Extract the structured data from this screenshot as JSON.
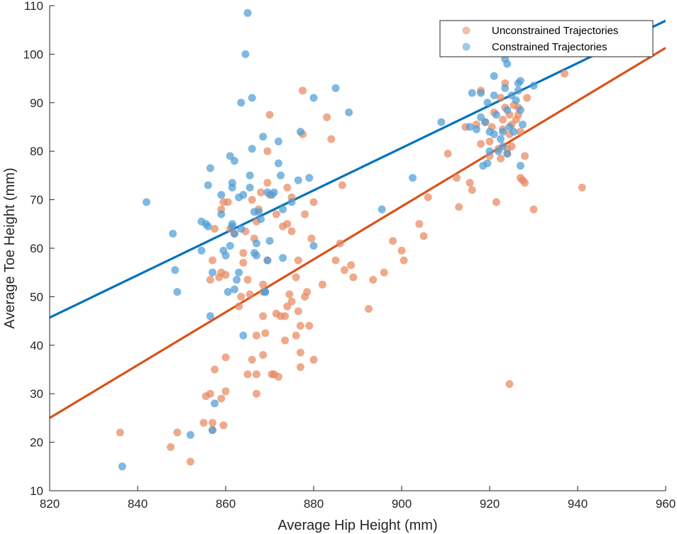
{
  "chart_data": {
    "type": "scatter",
    "title": "",
    "xlabel": "Average Hip Height (mm)",
    "ylabel": "Average Toe Height (mm)",
    "xlim": [
      820,
      960
    ],
    "ylim": [
      10,
      110
    ],
    "xticks": [
      820,
      840,
      860,
      880,
      900,
      920,
      940,
      960
    ],
    "yticks": [
      10,
      20,
      30,
      40,
      50,
      60,
      70,
      80,
      90,
      100,
      110
    ],
    "xtick_labels": [
      "820",
      "840",
      "860",
      "880",
      "900",
      "920",
      "940",
      "960"
    ],
    "ytick_labels": [
      "10",
      "20",
      "30",
      "40",
      "50",
      "60",
      "70",
      "80",
      "90",
      "100",
      "110"
    ],
    "grid": false,
    "legend_position": "top-right",
    "series": [
      {
        "name": "Unconstrained Trajectories",
        "color": "#D95319",
        "points": [
          [
            836,
            22
          ],
          [
            847.5,
            19
          ],
          [
            849,
            22
          ],
          [
            852,
            16
          ],
          [
            855,
            24
          ],
          [
            855.5,
            29.5
          ],
          [
            856.5,
            30
          ],
          [
            857,
            22.5
          ],
          [
            857,
            24
          ],
          [
            857.5,
            35
          ],
          [
            859,
            29
          ],
          [
            859.5,
            23.5
          ],
          [
            860,
            30.5
          ],
          [
            860,
            37.5
          ],
          [
            856.5,
            53.5
          ],
          [
            857,
            57.5
          ],
          [
            857.5,
            64
          ],
          [
            858.5,
            54
          ],
          [
            859,
            68
          ],
          [
            859.5,
            69.5
          ],
          [
            859,
            55
          ],
          [
            860,
            54.5
          ],
          [
            860.5,
            69.5
          ],
          [
            861,
            64
          ],
          [
            862,
            63
          ],
          [
            863,
            48
          ],
          [
            863.5,
            50
          ],
          [
            864,
            57
          ],
          [
            864,
            59
          ],
          [
            864.5,
            63.5
          ],
          [
            865,
            53.5
          ],
          [
            865.5,
            50.5
          ],
          [
            865,
            34
          ],
          [
            866,
            37
          ],
          [
            866,
            70
          ],
          [
            866.5,
            62
          ],
          [
            867,
            65.5
          ],
          [
            867,
            42
          ],
          [
            867,
            34
          ],
          [
            867,
            30
          ],
          [
            867.5,
            68
          ],
          [
            868,
            71.5
          ],
          [
            868.5,
            52.5
          ],
          [
            868.5,
            51
          ],
          [
            868.5,
            46
          ],
          [
            868.5,
            38
          ],
          [
            869,
            42.5
          ],
          [
            869.5,
            80
          ],
          [
            869.5,
            57.5
          ],
          [
            869.5,
            73.5
          ],
          [
            870,
            87.5
          ],
          [
            870,
            71
          ],
          [
            870.5,
            34
          ],
          [
            871,
            34
          ],
          [
            871.5,
            46.5
          ],
          [
            871.5,
            67
          ],
          [
            872,
            33.5
          ],
          [
            872.5,
            46
          ],
          [
            873,
            64.5
          ],
          [
            873.5,
            46
          ],
          [
            873.5,
            41
          ],
          [
            874,
            65
          ],
          [
            874,
            72.5
          ],
          [
            874,
            48
          ],
          [
            874.5,
            50.5
          ],
          [
            875,
            63.5
          ],
          [
            875,
            70.5
          ],
          [
            875,
            49
          ],
          [
            876,
            54
          ],
          [
            876,
            42
          ],
          [
            876.5,
            57.5
          ],
          [
            876.5,
            47
          ],
          [
            877,
            44
          ],
          [
            877,
            38.5
          ],
          [
            877,
            35.5
          ],
          [
            877.5,
            83.5
          ],
          [
            877.5,
            92.5
          ],
          [
            878,
            67
          ],
          [
            878,
            50
          ],
          [
            878.5,
            51
          ],
          [
            879,
            44
          ],
          [
            879.5,
            62
          ],
          [
            880,
            69.5
          ],
          [
            880,
            37
          ],
          [
            882,
            52.5
          ],
          [
            883,
            87
          ],
          [
            884,
            82.5
          ],
          [
            885,
            57.5
          ],
          [
            886,
            61
          ],
          [
            886.5,
            73
          ],
          [
            887,
            55.5
          ],
          [
            888.5,
            56.5
          ],
          [
            889,
            54
          ],
          [
            892.5,
            47.5
          ],
          [
            893.5,
            53.5
          ],
          [
            896,
            55
          ],
          [
            898,
            61.5
          ],
          [
            900,
            59.5
          ],
          [
            900.5,
            57.5
          ],
          [
            904,
            65
          ],
          [
            905,
            62.5
          ],
          [
            906,
            70.5
          ],
          [
            910.5,
            79.5
          ],
          [
            912.5,
            74.5
          ],
          [
            913,
            68.5
          ],
          [
            914.5,
            85
          ],
          [
            915.5,
            73.5
          ],
          [
            916,
            72
          ],
          [
            917,
            85.5
          ],
          [
            918,
            92.5
          ],
          [
            918,
            81.5
          ],
          [
            919,
            86
          ],
          [
            920,
            79
          ],
          [
            920,
            82
          ],
          [
            920.5,
            85
          ],
          [
            921,
            88
          ],
          [
            921.5,
            69.5
          ],
          [
            922,
            80.5
          ],
          [
            922.5,
            78.5
          ],
          [
            922.5,
            91
          ],
          [
            923,
            86.5
          ],
          [
            923,
            84.5
          ],
          [
            923.5,
            94
          ],
          [
            923.5,
            89
          ],
          [
            924,
            80.5
          ],
          [
            924,
            79.5
          ],
          [
            924.5,
            83.5
          ],
          [
            924.5,
            87.5
          ],
          [
            924.5,
            32
          ],
          [
            925,
            81
          ],
          [
            925,
            85.5
          ],
          [
            925.5,
            89.5
          ],
          [
            926,
            86.5
          ],
          [
            926.5,
            89
          ],
          [
            926.5,
            87.5
          ],
          [
            927,
            84
          ],
          [
            927,
            74.5
          ],
          [
            927.5,
            74
          ],
          [
            928,
            79
          ],
          [
            928,
            73.5
          ],
          [
            928.5,
            91
          ],
          [
            930,
            68
          ],
          [
            937,
            96
          ],
          [
            941,
            72.5
          ]
        ]
      },
      {
        "name": "Constrained Trajectories",
        "color": "#0072BD",
        "points": [
          [
            836.5,
            15
          ],
          [
            842,
            69.5
          ],
          [
            848,
            63
          ],
          [
            848.5,
            55.5
          ],
          [
            849,
            51
          ],
          [
            852,
            21.5
          ],
          [
            854.5,
            59.5
          ],
          [
            854.5,
            65.5
          ],
          [
            855.5,
            65
          ],
          [
            856,
            73
          ],
          [
            856,
            64.5
          ],
          [
            856.5,
            76.5
          ],
          [
            856.5,
            46
          ],
          [
            857,
            55
          ],
          [
            857,
            22.5
          ],
          [
            857.5,
            28
          ],
          [
            859,
            71
          ],
          [
            859,
            67
          ],
          [
            859.5,
            59.5
          ],
          [
            860,
            58.5
          ],
          [
            860.5,
            51
          ],
          [
            861,
            79
          ],
          [
            861,
            60.5
          ],
          [
            861.5,
            73.5
          ],
          [
            861.5,
            72.5
          ],
          [
            861.5,
            64.5
          ],
          [
            861.5,
            65
          ],
          [
            862,
            78
          ],
          [
            862,
            51.5
          ],
          [
            862,
            63
          ],
          [
            862.5,
            53.5
          ],
          [
            863,
            70.5
          ],
          [
            863,
            55
          ],
          [
            863.5,
            90
          ],
          [
            863.5,
            64
          ],
          [
            864,
            71
          ],
          [
            864,
            42
          ],
          [
            864.5,
            100
          ],
          [
            865,
            108.5
          ],
          [
            865.5,
            75
          ],
          [
            865.5,
            72.5
          ],
          [
            866,
            91
          ],
          [
            866,
            80.5
          ],
          [
            866.5,
            67.5
          ],
          [
            866.5,
            59
          ],
          [
            867,
            61
          ],
          [
            867,
            58.5
          ],
          [
            867.5,
            67.5
          ],
          [
            868,
            66
          ],
          [
            868.5,
            83
          ],
          [
            869,
            51
          ],
          [
            869,
            51
          ],
          [
            869.5,
            71.5
          ],
          [
            869.5,
            57.5
          ],
          [
            870,
            61.5
          ],
          [
            870.5,
            71
          ],
          [
            871,
            71.5
          ],
          [
            872,
            82
          ],
          [
            872,
            77.5
          ],
          [
            872.5,
            75
          ],
          [
            873,
            58
          ],
          [
            873,
            68
          ],
          [
            875,
            69.5
          ],
          [
            876.5,
            74
          ],
          [
            877,
            84
          ],
          [
            879,
            74.5
          ],
          [
            880,
            91
          ],
          [
            880,
            60.5
          ],
          [
            885,
            93
          ],
          [
            888,
            88
          ],
          [
            895.5,
            68
          ],
          [
            902.5,
            74.5
          ],
          [
            909,
            86
          ],
          [
            915.5,
            85
          ],
          [
            916,
            92
          ],
          [
            917,
            84.5
          ],
          [
            918,
            87
          ],
          [
            918,
            92
          ],
          [
            918.5,
            77
          ],
          [
            919,
            86
          ],
          [
            919.5,
            90
          ],
          [
            919.5,
            77.5
          ],
          [
            920,
            84
          ],
          [
            920,
            80
          ],
          [
            921,
            95.5
          ],
          [
            921,
            91.5
          ],
          [
            921,
            83.5
          ],
          [
            921.5,
            87.5
          ],
          [
            922,
            80
          ],
          [
            922.5,
            82.5
          ],
          [
            923,
            81
          ],
          [
            923,
            84
          ],
          [
            923.5,
            99
          ],
          [
            923.5,
            93
          ],
          [
            924,
            98
          ],
          [
            924,
            88.5
          ],
          [
            924,
            79.5
          ],
          [
            924.5,
            85
          ],
          [
            925,
            91.5
          ],
          [
            925.5,
            84
          ],
          [
            926,
            90.5
          ],
          [
            926.5,
            92.5
          ],
          [
            926.5,
            94
          ],
          [
            927,
            94.5
          ],
          [
            927,
            77
          ],
          [
            927,
            88.5
          ],
          [
            927.5,
            85.5
          ],
          [
            930,
            93.5
          ]
        ]
      }
    ],
    "fit_lines": [
      {
        "series": "Unconstrained Trajectories",
        "color": "#D95319",
        "x": [
          820,
          960
        ],
        "y": [
          25,
          101.3
        ]
      },
      {
        "series": "Constrained Trajectories",
        "color": "#0072BD",
        "x": [
          820,
          960
        ],
        "y": [
          45.7,
          106.9
        ]
      }
    ]
  }
}
